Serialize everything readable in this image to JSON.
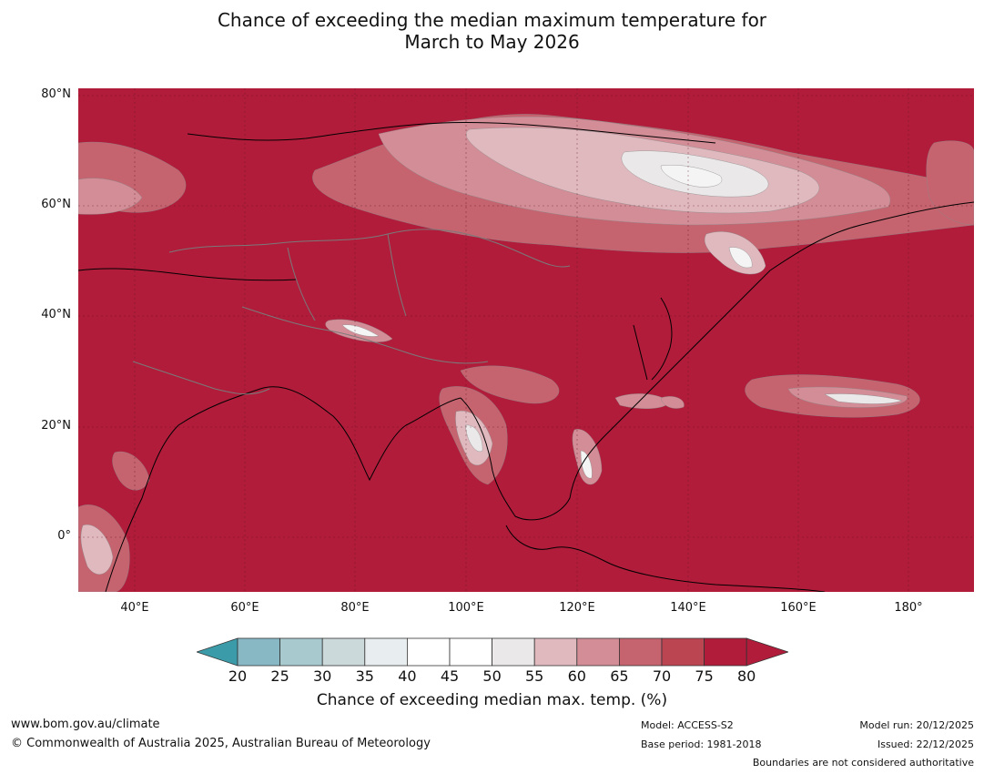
{
  "title_line1": "Chance of exceeding the median maximum temperature for",
  "title_line2": "March to May 2026",
  "lat_labels": [
    "80°N",
    "60°N",
    "40°N",
    "20°N",
    "0°"
  ],
  "lon_labels": [
    "40°E",
    "60°E",
    "80°E",
    "100°E",
    "120°E",
    "140°E",
    "160°E",
    "180°"
  ],
  "colorbar": {
    "ticks": [
      "20",
      "25",
      "30",
      "35",
      "40",
      "45",
      "50",
      "55",
      "60",
      "65",
      "70",
      "75",
      "80"
    ],
    "colors": [
      "#6aaebd",
      "#88b8c4",
      "#a8c9ce",
      "#cbd9da",
      "#e8eeef",
      "#ffffff",
      "#ffffff",
      "#ebe8ea",
      "#e0b9bf",
      "#d38d97",
      "#c5636f",
      "#bc4552",
      "#b11c3b"
    ],
    "low_color": "#3c9ba8",
    "high_color": "#b11c3b",
    "title": "Chance of exceeding median max. temp. (%)"
  },
  "map_colors": {
    "base": "#b11c3b",
    "c75": "#bc4552",
    "c70": "#c5636f",
    "c65": "#d38d97",
    "c60": "#e0b9bf",
    "c55": "#ebe8ea",
    "c50": "#f4f4f4"
  },
  "footer": {
    "url": "www.bom.gov.au/climate",
    "copyright": "© Commonwealth of Australia 2025, Australian Bureau of Meteorology",
    "model": "Model: ACCESS-S2",
    "base_period": "Base period: 1981-2018",
    "model_run": "Model run: 20/12/2025",
    "issued": "Issued: 22/12/2025",
    "disclaimer": "Boundaries are not considered authoritative"
  }
}
